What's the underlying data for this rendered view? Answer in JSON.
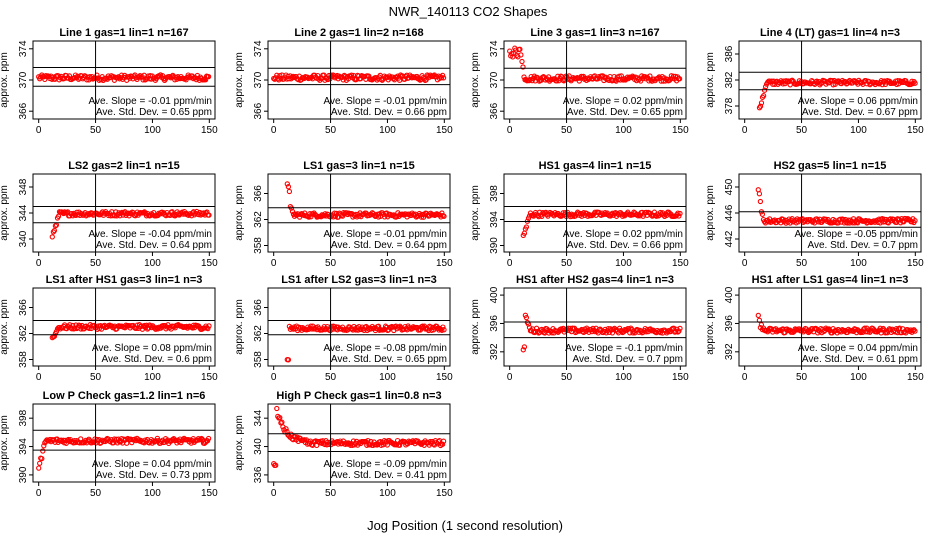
{
  "chart_data": {
    "type": "scatter",
    "title": "NWR_140113  CO2 Shapes",
    "xlabel": "Jog Position (1 second resolution)",
    "ylabel": "approx. ppm",
    "xlim": [
      -5,
      155
    ],
    "xticks": [
      0,
      50,
      100,
      150
    ],
    "slope_label": "Ave. Slope =",
    "slope_unit": "ppm/min",
    "std_label": "Ave. Std. Dev. =",
    "std_unit": "ppm",
    "marker_color": "#ff0000",
    "panels": [
      {
        "title": "Line 1 gas=1 lin=1 n=167",
        "ylim": [
          365,
          375
        ],
        "yticks": [
          366,
          370,
          374
        ],
        "hlines": [
          369.2,
          371.6
        ],
        "slope": "-0.01",
        "std": "0.65",
        "shape": "flat",
        "base": 370.3,
        "start": 0
      },
      {
        "title": "Line 2 gas=1 lin=2 n=168",
        "ylim": [
          365,
          375
        ],
        "yticks": [
          366,
          370,
          374
        ],
        "hlines": [
          369.4,
          371.5
        ],
        "slope": "-0.01",
        "std": "0.66",
        "shape": "flat",
        "base": 370.3,
        "start": 0
      },
      {
        "title": "Line 3 gas=1 lin=3 n=167",
        "ylim": [
          365,
          375
        ],
        "yticks": [
          366,
          370,
          374
        ],
        "hlines": [
          369.0,
          371.5
        ],
        "slope": "0.02",
        "std": "0.65",
        "shape": "early_high",
        "base": 370.2,
        "start": 0,
        "peak": 373.5
      },
      {
        "title": "Line 4 (LT) gas=1 lin=4 n=3",
        "ylim": [
          376,
          388
        ],
        "yticks": [
          378,
          382,
          386
        ],
        "hlines": [
          380.5,
          383.2
        ],
        "slope": "0.06",
        "std": "0.67",
        "shape": "rise",
        "base": 381.6,
        "start": 13,
        "low": 377.5
      },
      {
        "title": "LS2 gas=2 lin=1 n=15",
        "ylim": [
          338,
          350
        ],
        "yticks": [
          340,
          344,
          348
        ],
        "hlines": [
          342.5,
          345.0
        ],
        "slope": "-0.04",
        "std": "0.64",
        "shape": "rise",
        "base": 343.9,
        "start": 12,
        "low": 340.5
      },
      {
        "title": "LS1 gas=3 lin=1 n=15",
        "ylim": [
          357,
          369
        ],
        "yticks": [
          358,
          362,
          366
        ],
        "hlines": [
          361.5,
          363.8
        ],
        "slope": "-0.01",
        "std": "0.64",
        "shape": "spike_high",
        "base": 362.7,
        "start": 12,
        "peak": 367.5
      },
      {
        "title": "HS1 gas=4 lin=1 n=15",
        "ylim": [
          389,
          401
        ],
        "yticks": [
          390,
          394,
          398
        ],
        "hlines": [
          393.7,
          396.0
        ],
        "slope": "0.02",
        "std": "0.66",
        "shape": "rise",
        "base": 394.8,
        "start": 12,
        "low": 391.5
      },
      {
        "title": "HS2 gas=5 lin=1 n=15",
        "ylim": [
          440,
          452
        ],
        "yticks": [
          442,
          446,
          450
        ],
        "hlines": [
          443.8,
          446.2
        ],
        "slope": "-0.05",
        "std": "0.7",
        "shape": "spike_high",
        "base": 444.8,
        "start": 12,
        "peak": 449.5
      },
      {
        "title": "LS1 after HS1 gas=3 lin=1 n=3",
        "ylim": [
          357,
          369
        ],
        "yticks": [
          358,
          362,
          366
        ],
        "hlines": [
          361.8,
          364.0
        ],
        "slope": "0.08",
        "std": "0.6",
        "shape": "rise",
        "base": 363.0,
        "start": 12,
        "low": 361.4
      },
      {
        "title": "LS1 after LS2 gas=3 lin=1 n=3",
        "ylim": [
          357,
          369
        ],
        "yticks": [
          358,
          362,
          366
        ],
        "hlines": [
          361.8,
          364.0
        ],
        "slope": "-0.08",
        "std": "0.65",
        "shape": "dip",
        "base": 362.8,
        "start": 12,
        "low": 358.0
      },
      {
        "title": "HS1 after HS2 gas=4 lin=1 n=3",
        "ylim": [
          390,
          401
        ],
        "yticks": [
          392,
          396,
          400
        ],
        "hlines": [
          394.0,
          396.2
        ],
        "slope": "-0.1",
        "std": "0.7",
        "shape": "mixed",
        "base": 395.0,
        "start": 12,
        "peak": 397.2,
        "low": 392.5
      },
      {
        "title": "HS1 after LS1 gas=4 lin=1 n=3",
        "ylim": [
          390,
          401
        ],
        "yticks": [
          392,
          396,
          400
        ],
        "hlines": [
          394.0,
          396.2
        ],
        "slope": "0.04",
        "std": "0.61",
        "shape": "spike_high",
        "base": 395.0,
        "start": 12,
        "peak": 397.0
      },
      {
        "title": "Low P Check gas=1.2 lin=1 n=6",
        "ylim": [
          389,
          400
        ],
        "yticks": [
          390,
          394,
          398
        ],
        "hlines": [
          393.5,
          396.3
        ],
        "slope": "0.04",
        "std": "0.73",
        "shape": "rise",
        "base": 394.8,
        "start": 0,
        "low": 390.8
      },
      {
        "title": "High P Check gas=1 lin=0.8 n=3",
        "ylim": [
          335,
          346
        ],
        "yticks": [
          336,
          340,
          344
        ],
        "hlines": [
          339.3,
          341.8
        ],
        "slope": "-0.09",
        "std": "0.41",
        "shape": "decay",
        "base": 340.5,
        "start": 0,
        "peak": 345.5
      }
    ]
  }
}
